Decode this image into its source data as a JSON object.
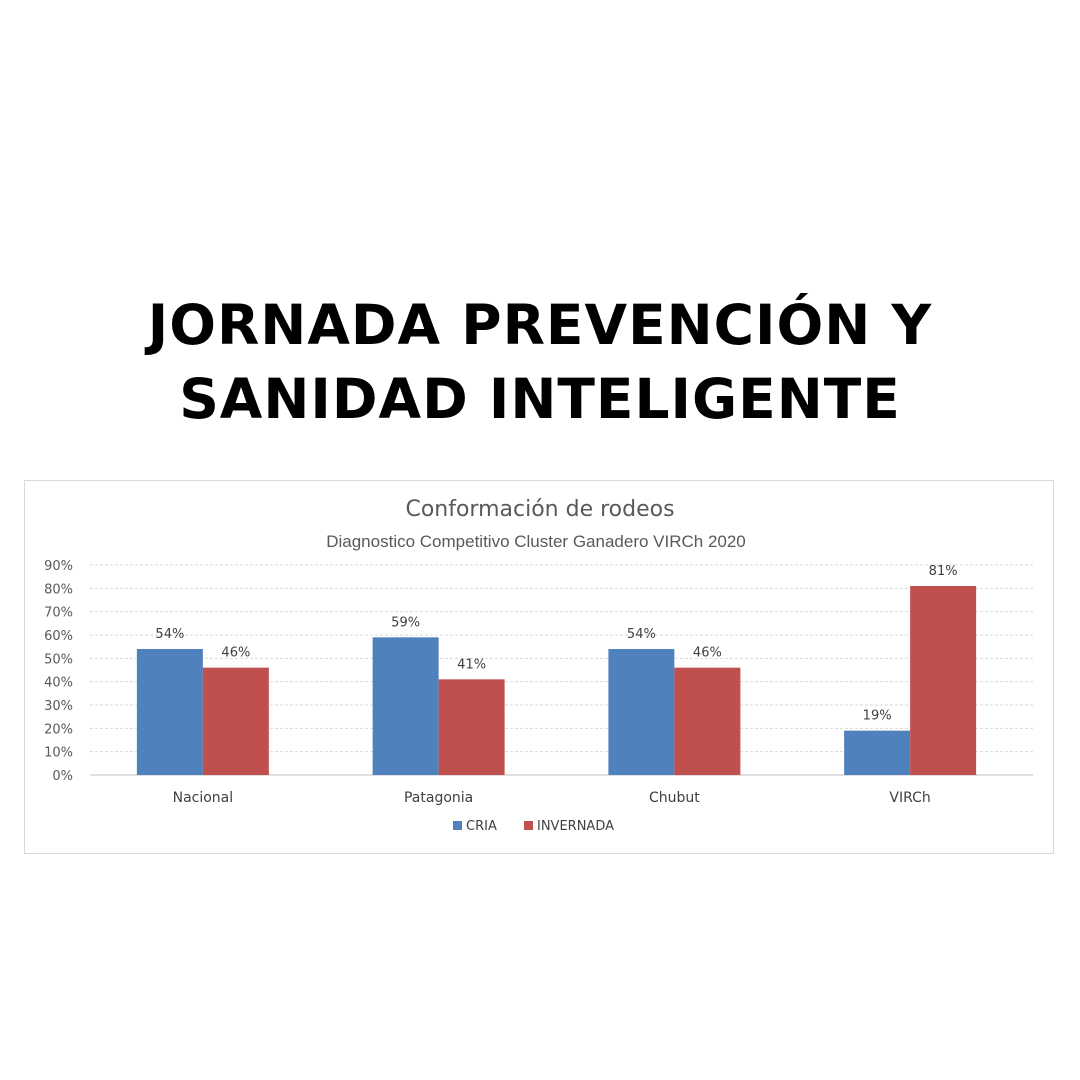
{
  "headline": {
    "line1": "JORNADA PREVENCIÓN Y",
    "line2": "SANIDAD INTELIGENTE"
  },
  "chart_data": {
    "type": "bar",
    "title": "Conformación de rodeos",
    "subtitle": "Diagnostico Competitivo Cluster Ganadero VIRCh 2020",
    "xlabel": "",
    "ylabel": "",
    "categories": [
      "Nacional",
      "Patagonia",
      "Chubut",
      "VIRCh"
    ],
    "series": [
      {
        "name": "CRIA",
        "values": [
          54,
          59,
          54,
          19
        ],
        "labels": [
          "54%",
          "59%",
          "54%",
          "19%"
        ],
        "color": "#4f81bd"
      },
      {
        "name": "INVERNADA",
        "values": [
          46,
          41,
          46,
          81
        ],
        "labels": [
          "46%",
          "41%",
          "46%",
          "81%"
        ],
        "color": "#c0504d"
      }
    ],
    "ylim": [
      0,
      90
    ],
    "yticks": [
      0,
      10,
      20,
      30,
      40,
      50,
      60,
      70,
      80,
      90
    ],
    "ytick_labels": [
      "0%",
      "10%",
      "20%",
      "30%",
      "40%",
      "50%",
      "60%",
      "70%",
      "80%",
      "90%"
    ],
    "grid": true,
    "legend": "bottom"
  }
}
